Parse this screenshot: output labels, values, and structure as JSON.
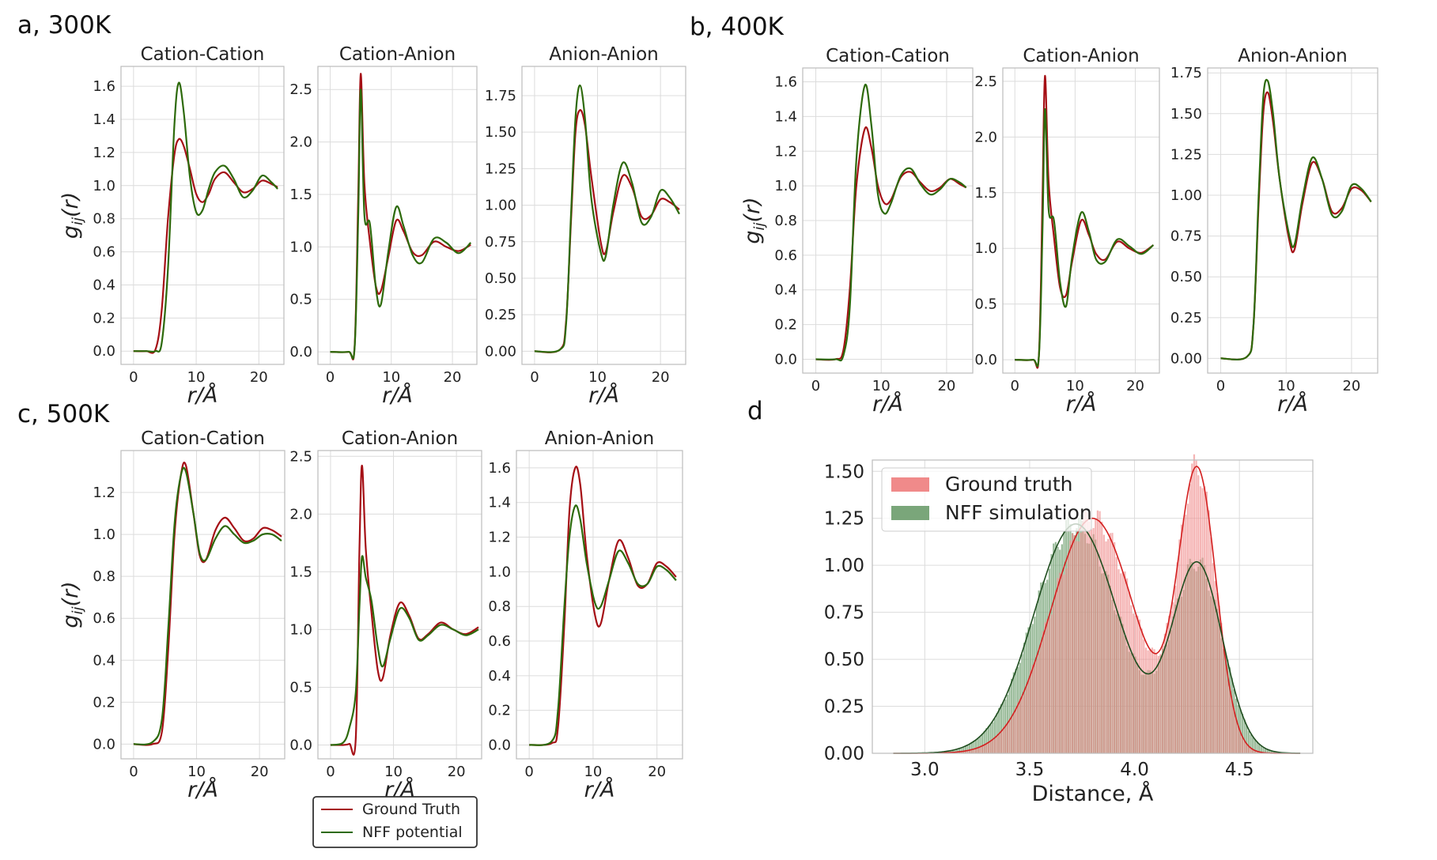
{
  "figure": {
    "panel_labels": [
      "a, 300K",
      "b, 400K",
      "c, 500K",
      "d"
    ]
  },
  "colors": {
    "ground_truth": "#a50f15",
    "nff": "#2d6a0b",
    "hist_ground_truth": "#f08a8a",
    "hist_nff": "#7aa67a",
    "kde_ground_truth": "#d42020",
    "kde_nff": "#1f4d1f"
  },
  "legend": {
    "ground_truth_label": "Ground Truth",
    "nff_label": "NFF potential"
  },
  "chart_data": [
    {
      "id": "a-cc",
      "type": "line",
      "title": "Cation-Cation",
      "xlabel": "r/Å",
      "ylabel": "g_ij(r)",
      "xlim": [
        -2,
        24
      ],
      "ylim": [
        -0.08,
        1.72
      ],
      "xticks": [
        0,
        10,
        20
      ],
      "yticks": [
        0.0,
        0.2,
        0.4,
        0.6,
        0.8,
        1.0,
        1.2,
        1.4,
        1.6
      ],
      "ytick_labels": [
        "0.0",
        "0.2",
        "0.4",
        "0.6",
        "0.8",
        "1.0",
        "1.2",
        "1.4",
        "1.6"
      ],
      "x": [
        0,
        2,
        3.5,
        4.5,
        5.5,
        6.5,
        7.2,
        8,
        9,
        10,
        11,
        12,
        13,
        14.5,
        16,
        17.5,
        19,
        20.5,
        22,
        23
      ],
      "series": [
        {
          "name": "Ground Truth",
          "values": [
            0,
            0,
            0.01,
            0.25,
            0.8,
            1.18,
            1.28,
            1.24,
            1.1,
            0.95,
            0.9,
            0.95,
            1.04,
            1.08,
            1.02,
            0.96,
            0.98,
            1.03,
            1.01,
            0.99
          ]
        },
        {
          "name": "NFF potential",
          "values": [
            0,
            0,
            0,
            0.05,
            0.5,
            1.35,
            1.62,
            1.45,
            1.05,
            0.84,
            0.85,
            0.98,
            1.08,
            1.12,
            1.04,
            0.93,
            0.97,
            1.06,
            1.02,
            0.98
          ]
        }
      ]
    },
    {
      "id": "a-ca",
      "type": "line",
      "title": "Cation-Anion",
      "xlabel": "r/Å",
      "ylabel": "",
      "xlim": [
        -2,
        24
      ],
      "ylim": [
        -0.12,
        2.72
      ],
      "xticks": [
        0,
        10,
        20
      ],
      "yticks": [
        0.0,
        0.5,
        1.0,
        1.5,
        2.0,
        2.5
      ],
      "ytick_labels": [
        "0.0",
        "0.5",
        "1.0",
        "1.5",
        "2.0",
        "2.5"
      ],
      "x": [
        0,
        3,
        4,
        4.6,
        5,
        5.6,
        6.5,
        7.5,
        8.3,
        9.5,
        10.8,
        12,
        13.5,
        15,
        17,
        19,
        21,
        23
      ],
      "series": [
        {
          "name": "Ground Truth",
          "values": [
            0,
            0,
            0.05,
            1.5,
            2.65,
            1.6,
            1.05,
            0.62,
            0.58,
            0.9,
            1.25,
            1.15,
            0.95,
            0.92,
            1.05,
            1.0,
            0.96,
            1.02
          ]
        },
        {
          "name": "NFF potential",
          "values": [
            0,
            0,
            0.04,
            1.3,
            2.5,
            1.3,
            1.22,
            0.6,
            0.45,
            0.95,
            1.38,
            1.2,
            0.92,
            0.85,
            1.08,
            1.04,
            0.94,
            1.04
          ]
        }
      ]
    },
    {
      "id": "a-aa",
      "type": "line",
      "title": "Anion-Anion",
      "xlabel": "r/Å",
      "ylabel": "",
      "xlim": [
        -2,
        24
      ],
      "ylim": [
        -0.09,
        1.95
      ],
      "xticks": [
        0,
        10,
        20
      ],
      "yticks": [
        0.0,
        0.25,
        0.5,
        0.75,
        1.0,
        1.25,
        1.5,
        1.75
      ],
      "ytick_labels": [
        "0.00",
        "0.25",
        "0.50",
        "0.75",
        "1.00",
        "1.25",
        "1.50",
        "1.75"
      ],
      "x": [
        0,
        4,
        5,
        5.8,
        6.5,
        7.2,
        8,
        9,
        10.5,
        11.3,
        12.5,
        14,
        15.5,
        17,
        18.5,
        20,
        21.5,
        23
      ],
      "series": [
        {
          "name": "Ground Truth",
          "values": [
            0,
            0.01,
            0.2,
            0.9,
            1.5,
            1.65,
            1.55,
            1.2,
            0.75,
            0.68,
            0.95,
            1.2,
            1.12,
            0.92,
            0.93,
            1.04,
            1.02,
            0.97
          ]
        },
        {
          "name": "NFF potential",
          "values": [
            0,
            0.01,
            0.18,
            0.95,
            1.6,
            1.82,
            1.6,
            1.05,
            0.68,
            0.65,
            1.0,
            1.29,
            1.15,
            0.88,
            0.92,
            1.1,
            1.05,
            0.94
          ]
        }
      ]
    },
    {
      "id": "b-cc",
      "type": "line",
      "title": "Cation-Cation",
      "xlabel": "r/Å",
      "ylabel": "g_ij(r)",
      "xlim": [
        -2,
        24
      ],
      "ylim": [
        -0.08,
        1.68
      ],
      "xticks": [
        0,
        10,
        20
      ],
      "yticks": [
        0.0,
        0.2,
        0.4,
        0.6,
        0.8,
        1.0,
        1.2,
        1.4,
        1.6
      ],
      "ytick_labels": [
        "0.0",
        "0.2",
        "0.4",
        "0.6",
        "0.8",
        "1.0",
        "1.2",
        "1.4",
        "1.6"
      ],
      "x": [
        0,
        3,
        4.2,
        5.2,
        6.2,
        7.5,
        8.5,
        9.5,
        10.5,
        11.5,
        13,
        14.5,
        16,
        17.5,
        19,
        20.5,
        22,
        23
      ],
      "series": [
        {
          "name": "Ground Truth",
          "values": [
            0,
            0,
            0.05,
            0.4,
            1.0,
            1.33,
            1.22,
            1.0,
            0.9,
            0.92,
            1.05,
            1.08,
            1.02,
            0.97,
            0.99,
            1.04,
            1.01,
            0.99
          ]
        },
        {
          "name": "NFF potential",
          "values": [
            0,
            0,
            0.02,
            0.3,
            1.15,
            1.58,
            1.35,
            0.95,
            0.84,
            0.9,
            1.06,
            1.1,
            1.01,
            0.95,
            0.98,
            1.04,
            1.02,
            0.99
          ]
        }
      ]
    },
    {
      "id": "b-ca",
      "type": "line",
      "title": "Cation-Anion",
      "xlabel": "r/Å",
      "ylabel": "",
      "xlim": [
        -2,
        24
      ],
      "ylim": [
        -0.12,
        2.62
      ],
      "xticks": [
        0,
        10,
        20
      ],
      "yticks": [
        0.0,
        0.5,
        1.0,
        1.5,
        2.0,
        2.5
      ],
      "ytick_labels": [
        "0.0",
        "0.5",
        "1.0",
        "1.5",
        "2.0",
        "2.5"
      ],
      "x": [
        0,
        3,
        4,
        4.6,
        5,
        5.6,
        6.5,
        7.5,
        8.5,
        9.5,
        11,
        12.3,
        13.5,
        15,
        17,
        19,
        21,
        23
      ],
      "series": [
        {
          "name": "Ground Truth",
          "values": [
            0,
            0,
            0.05,
            1.5,
            2.55,
            1.6,
            1.1,
            0.65,
            0.58,
            0.88,
            1.25,
            1.12,
            0.95,
            0.9,
            1.06,
            1.0,
            0.96,
            1.03
          ]
        },
        {
          "name": "NFF potential",
          "values": [
            0,
            0,
            0.04,
            1.2,
            2.25,
            1.35,
            1.25,
            0.7,
            0.48,
            0.92,
            1.32,
            1.15,
            0.9,
            0.88,
            1.08,
            1.02,
            0.95,
            1.03
          ]
        }
      ]
    },
    {
      "id": "b-aa",
      "type": "line",
      "title": "Anion-Anion",
      "xlabel": "r/Å",
      "ylabel": "",
      "xlim": [
        -2,
        24
      ],
      "ylim": [
        -0.09,
        1.78
      ],
      "xticks": [
        0,
        10,
        20
      ],
      "yticks": [
        0.0,
        0.25,
        0.5,
        0.75,
        1.0,
        1.25,
        1.5,
        1.75
      ],
      "ytick_labels": [
        "0.00",
        "0.25",
        "0.50",
        "0.75",
        "1.00",
        "1.25",
        "1.50",
        "1.75"
      ],
      "x": [
        0,
        4,
        5,
        5.8,
        6.5,
        7.2,
        8,
        9,
        10.5,
        11.3,
        12.5,
        14,
        15.5,
        17,
        18.5,
        20,
        21.5,
        23
      ],
      "series": [
        {
          "name": "Ground Truth",
          "values": [
            0,
            0.01,
            0.2,
            0.95,
            1.5,
            1.63,
            1.45,
            1.1,
            0.72,
            0.67,
            0.95,
            1.2,
            1.1,
            0.9,
            0.92,
            1.04,
            1.03,
            0.96
          ]
        },
        {
          "name": "NFF potential",
          "values": [
            0,
            0.01,
            0.2,
            1.0,
            1.6,
            1.7,
            1.5,
            1.1,
            0.75,
            0.7,
            0.98,
            1.23,
            1.1,
            0.88,
            0.9,
            1.06,
            1.04,
            0.96
          ]
        }
      ]
    },
    {
      "id": "c-cc",
      "type": "line",
      "title": "Cation-Cation",
      "xlabel": "r/Å",
      "ylabel": "g_ij(r)",
      "xlim": [
        -2,
        24
      ],
      "ylim": [
        -0.07,
        1.4
      ],
      "xticks": [
        0,
        10,
        20
      ],
      "yticks": [
        0.0,
        0.2,
        0.4,
        0.6,
        0.8,
        1.0,
        1.2
      ],
      "ytick_labels": [
        "0.0",
        "0.2",
        "0.4",
        "0.6",
        "0.8",
        "1.0",
        "1.2"
      ],
      "x": [
        0,
        3,
        4.5,
        5.5,
        6.5,
        7.5,
        8.3,
        9.5,
        10.5,
        11.5,
        13,
        14.5,
        16,
        17.5,
        19,
        20.5,
        22,
        23.5
      ],
      "series": [
        {
          "name": "Ground Truth",
          "values": [
            0,
            0,
            0.06,
            0.45,
            1.0,
            1.28,
            1.33,
            1.1,
            0.9,
            0.88,
            1.02,
            1.08,
            1.03,
            0.97,
            0.98,
            1.03,
            1.02,
            0.99
          ]
        },
        {
          "name": "NFF potential",
          "values": [
            0,
            0.01,
            0.12,
            0.55,
            1.05,
            1.28,
            1.3,
            1.1,
            0.91,
            0.88,
            0.98,
            1.04,
            1.0,
            0.96,
            0.97,
            1.0,
            1.0,
            0.97
          ]
        }
      ]
    },
    {
      "id": "c-ca",
      "type": "line",
      "title": "Cation-Anion",
      "xlabel": "r/Å",
      "ylabel": "",
      "xlim": [
        -2,
        24
      ],
      "ylim": [
        -0.12,
        2.55
      ],
      "xticks": [
        0,
        10,
        20
      ],
      "yticks": [
        0.0,
        0.5,
        1.0,
        1.5,
        2.0,
        2.5
      ],
      "ytick_labels": [
        "0.0",
        "0.5",
        "1.0",
        "1.5",
        "2.0",
        "2.5"
      ],
      "x": [
        0,
        2,
        3,
        4,
        4.6,
        5,
        5.6,
        6.5,
        7.5,
        8.3,
        9.5,
        11,
        12.5,
        14,
        15.5,
        17.5,
        19.5,
        21.5,
        23.5
      ],
      "series": [
        {
          "name": "Ground Truth",
          "values": [
            0,
            0,
            0.01,
            0.05,
            1.7,
            2.42,
            1.7,
            1.15,
            0.65,
            0.58,
            0.95,
            1.23,
            1.12,
            0.92,
            0.96,
            1.06,
            1.0,
            0.96,
            1.02
          ]
        },
        {
          "name": "NFF potential",
          "values": [
            0,
            0.02,
            0.15,
            0.45,
            1.2,
            1.63,
            1.45,
            1.25,
            0.85,
            0.68,
            0.92,
            1.18,
            1.1,
            0.91,
            0.95,
            1.04,
            1.0,
            0.95,
            1.0
          ]
        }
      ]
    },
    {
      "id": "c-aa",
      "type": "line",
      "title": "Anion-Anion",
      "xlabel": "r/Å",
      "ylabel": "",
      "xlim": [
        -2,
        24
      ],
      "ylim": [
        -0.08,
        1.7
      ],
      "xticks": [
        0,
        10,
        20
      ],
      "yticks": [
        0.0,
        0.2,
        0.4,
        0.6,
        0.8,
        1.0,
        1.2,
        1.4,
        1.6
      ],
      "ytick_labels": [
        "0.0",
        "0.2",
        "0.4",
        "0.6",
        "0.8",
        "1.0",
        "1.2",
        "1.4",
        "1.6"
      ],
      "x": [
        0,
        3.5,
        4.5,
        5.5,
        6.3,
        7.2,
        8,
        9,
        10.3,
        11.2,
        12.5,
        14,
        15.5,
        17,
        18.5,
        20,
        21.5,
        23
      ],
      "series": [
        {
          "name": "Ground Truth",
          "values": [
            0,
            0.01,
            0.1,
            0.7,
            1.35,
            1.6,
            1.5,
            1.1,
            0.75,
            0.7,
            0.95,
            1.18,
            1.08,
            0.92,
            0.93,
            1.05,
            1.03,
            0.97
          ]
        },
        {
          "name": "NFF potential",
          "values": [
            0,
            0.02,
            0.2,
            0.8,
            1.2,
            1.38,
            1.3,
            1.05,
            0.82,
            0.8,
            0.95,
            1.12,
            1.05,
            0.93,
            0.93,
            1.03,
            1.01,
            0.95
          ]
        }
      ]
    },
    {
      "id": "d",
      "type": "histogram",
      "title": "",
      "xlabel": "Distance, Å",
      "ylabel": "",
      "xlim": [
        2.75,
        4.85
      ],
      "ylim": [
        0,
        1.56
      ],
      "xticks": [
        3.0,
        3.5,
        4.0,
        4.5
      ],
      "xtick_labels": [
        "3.0",
        "3.5",
        "4.0",
        "4.5"
      ],
      "yticks": [
        0.0,
        0.25,
        0.5,
        0.75,
        1.0,
        1.25,
        1.5
      ],
      "ytick_labels": [
        "0.00",
        "0.25",
        "0.50",
        "0.75",
        "1.00",
        "1.25",
        "1.50"
      ],
      "legend": [
        "Ground truth",
        "NFF simulation"
      ],
      "series": [
        {
          "name": "Ground truth",
          "peaks": [
            {
              "mu": 3.8,
              "sigma": 0.2,
              "height": 1.25
            },
            {
              "mu": 4.3,
              "sigma": 0.09,
              "height": 1.47
            }
          ]
        },
        {
          "name": "NFF simulation",
          "peaks": [
            {
              "mu": 3.72,
              "sigma": 0.2,
              "height": 1.22
            },
            {
              "mu": 4.3,
              "sigma": 0.12,
              "height": 1.0
            }
          ]
        }
      ]
    }
  ]
}
